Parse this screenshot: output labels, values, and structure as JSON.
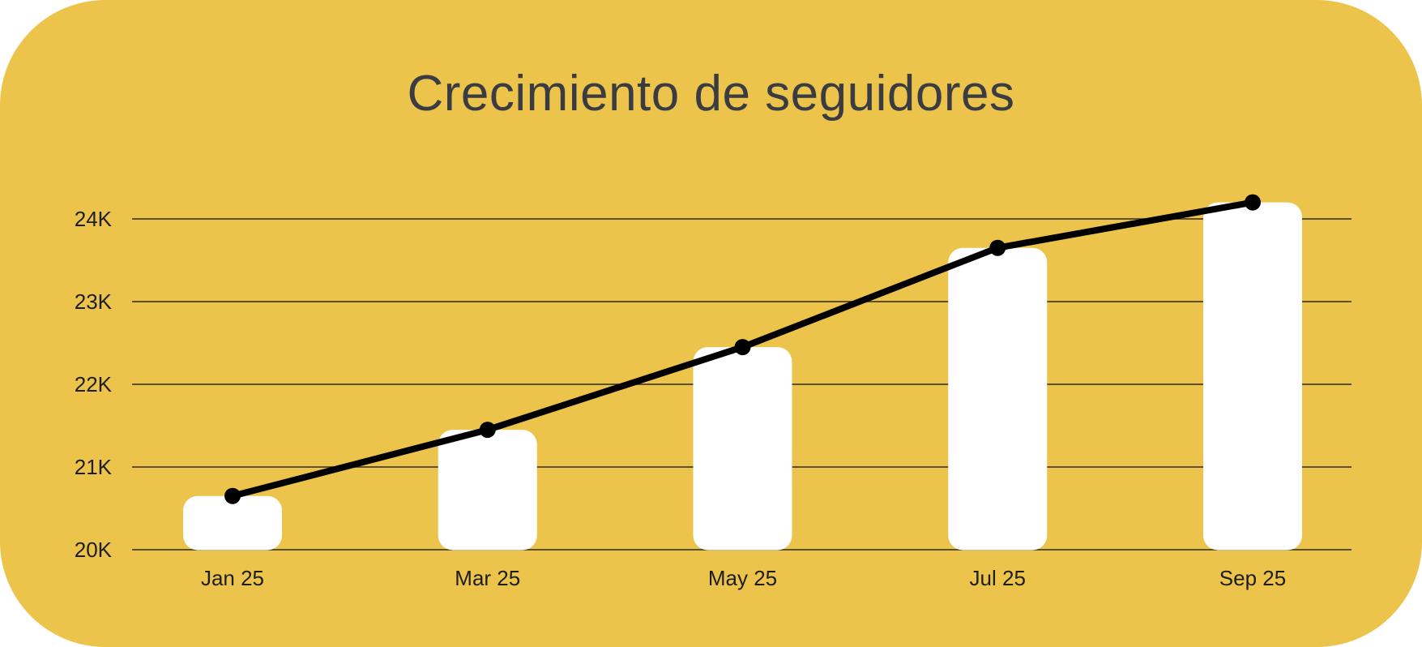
{
  "title": "Crecimiento de seguidores",
  "colors": {
    "background": "#ECC34B",
    "bars": "#FFFFFF",
    "line": "#000000",
    "grid": "#2b2b2b",
    "title": "#3a3c42"
  },
  "chart_data": {
    "type": "bar",
    "title": "Crecimiento de seguidores",
    "xlabel": "",
    "ylabel": "",
    "categories": [
      "Jan 25",
      "Mar 25",
      "May 25",
      "Jul 25",
      "Sep 25"
    ],
    "series": [
      {
        "type": "bar",
        "values": [
          20650,
          21450,
          22450,
          23650,
          24200
        ]
      },
      {
        "type": "line",
        "values": [
          20650,
          21450,
          22450,
          23650,
          24200
        ]
      }
    ],
    "ylim": [
      20000,
      24000
    ],
    "yticks": [
      20000,
      21000,
      22000,
      23000,
      24000
    ],
    "ytick_labels": [
      "20K",
      "21K",
      "22K",
      "23K",
      "24K"
    ],
    "grid": true,
    "legend": "none"
  }
}
